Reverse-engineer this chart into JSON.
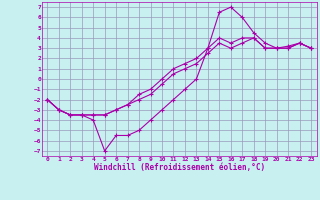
{
  "xlabel": "Windchill (Refroidissement éolien,°C)",
  "bg_color": "#c8f0f0",
  "line_color": "#aa00aa",
  "grid_color": "#9999bb",
  "xlim": [
    -0.5,
    23.5
  ],
  "ylim": [
    -7.5,
    7.5
  ],
  "xticks": [
    0,
    1,
    2,
    3,
    4,
    5,
    6,
    7,
    8,
    9,
    10,
    11,
    12,
    13,
    14,
    15,
    16,
    17,
    18,
    19,
    20,
    21,
    22,
    23
  ],
  "yticks": [
    -7,
    -6,
    -5,
    -4,
    -3,
    -2,
    -1,
    0,
    1,
    2,
    3,
    4,
    5,
    6,
    7
  ],
  "series": [
    {
      "x": [
        0,
        1,
        2,
        3,
        4,
        5,
        6,
        7,
        8,
        9,
        10,
        11,
        12,
        13,
        14,
        15,
        16,
        17,
        18,
        19,
        20,
        21,
        22,
        23
      ],
      "y": [
        -2,
        -3,
        -3.5,
        -3.5,
        -4,
        -7,
        -5.5,
        -5.5,
        -5,
        -4,
        -3,
        -2,
        -1,
        0,
        3,
        6.5,
        7,
        6,
        4.5,
        3.5,
        3,
        3,
        3.5,
        3
      ]
    },
    {
      "x": [
        0,
        1,
        2,
        3,
        4,
        5,
        6,
        7,
        8,
        9,
        10,
        11,
        12,
        13,
        14,
        15,
        16,
        17,
        18,
        19,
        20,
        21,
        22,
        23
      ],
      "y": [
        -2,
        -3,
        -3.5,
        -3.5,
        -3.5,
        -3.5,
        -3,
        -2.5,
        -2,
        -1.5,
        -0.5,
        0.5,
        1,
        1.5,
        2.5,
        3.5,
        3,
        3.5,
        4,
        3,
        3,
        3,
        3.5,
        3
      ]
    },
    {
      "x": [
        0,
        1,
        2,
        3,
        4,
        5,
        6,
        7,
        8,
        9,
        10,
        11,
        12,
        13,
        14,
        15,
        16,
        17,
        18,
        19,
        20,
        21,
        22,
        23
      ],
      "y": [
        -2,
        -3,
        -3.5,
        -3.5,
        -3.5,
        -3.5,
        -3,
        -2.5,
        -1.5,
        -1,
        0,
        1,
        1.5,
        2,
        3,
        4,
        3.5,
        4,
        4,
        3,
        3,
        3.2,
        3.5,
        3
      ]
    }
  ]
}
